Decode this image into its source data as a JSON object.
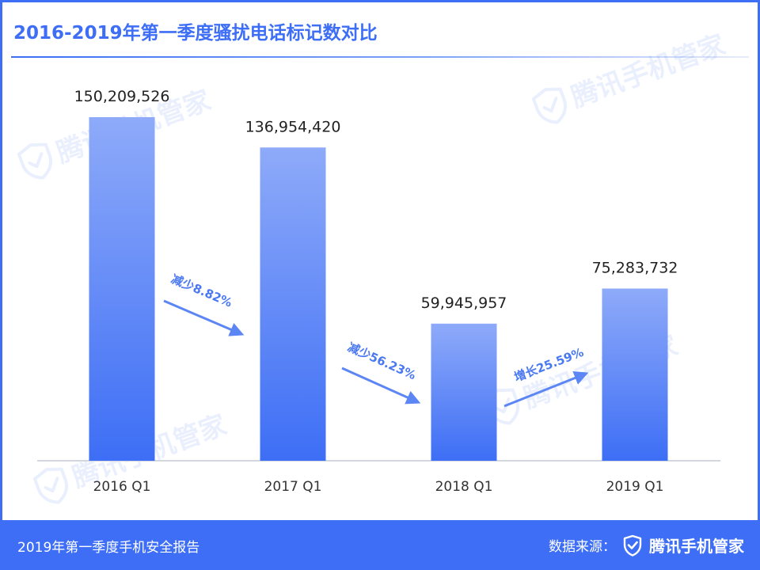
{
  "header": {
    "title": "2016-2019年第一季度骚扰电话标记数对比"
  },
  "footer": {
    "report_name": "2019年第一季度手机安全报告",
    "source_label": "数据来源：",
    "brand": "腾讯手机管家"
  },
  "watermark": {
    "text": "腾讯手机管家",
    "icon": "shield-check-icon"
  },
  "colors": {
    "accent": "#3d6ef5",
    "bar_top": "#8eaaf9",
    "bar_bottom": "#3d6ef5",
    "axis": "#d3d7df"
  },
  "chart_data": {
    "type": "bar",
    "categories": [
      "2016 Q1",
      "2017 Q1",
      "2018 Q1",
      "2019 Q1"
    ],
    "values": [
      150209526,
      136954420,
      59945957,
      75283732
    ],
    "value_labels": [
      "150,209,526",
      "136,954,420",
      "59,945,957",
      "75,283,732"
    ],
    "title": "2016-2019年第一季度骚扰电话标记数对比",
    "xlabel": "",
    "ylabel": "",
    "ylim": [
      0,
      150209526
    ],
    "grid": false,
    "annotations": [
      {
        "text": "减少8.82%",
        "from": "2016 Q1",
        "to": "2017 Q1",
        "direction": "down"
      },
      {
        "text": "减少56.23%",
        "from": "2017 Q1",
        "to": "2018 Q1",
        "direction": "down"
      },
      {
        "text": "增长25.59%",
        "from": "2018 Q1",
        "to": "2019 Q1",
        "direction": "up"
      }
    ]
  }
}
